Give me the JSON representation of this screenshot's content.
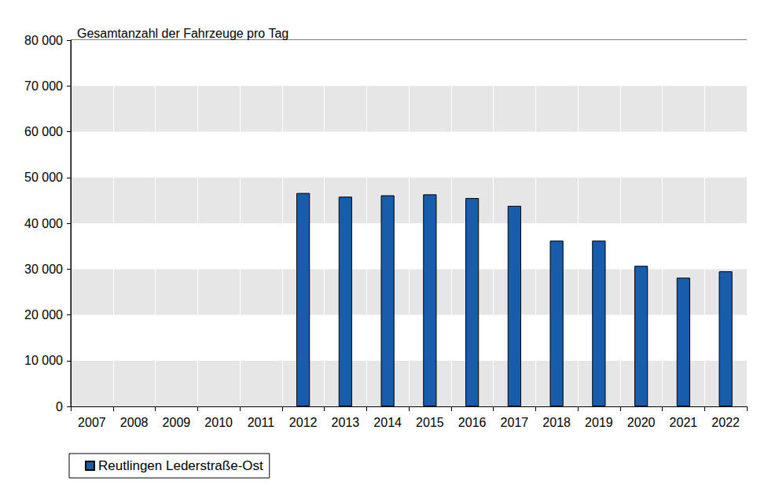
{
  "chart_data": {
    "type": "bar",
    "title": "Gesamtanzahl der Fahrzeuge pro Tag",
    "categories": [
      "2007",
      "2008",
      "2009",
      "2010",
      "2011",
      "2012",
      "2013",
      "2014",
      "2015",
      "2016",
      "2017",
      "2018",
      "2019",
      "2020",
      "2021",
      "2022"
    ],
    "series": [
      {
        "name": "Reutlingen Lederstraße-Ost",
        "color": "#175dab",
        "values": [
          null,
          null,
          null,
          null,
          null,
          46600,
          45800,
          46100,
          46300,
          45500,
          43800,
          36200,
          36200,
          30700,
          28100,
          29500
        ]
      }
    ],
    "ylim": [
      0,
      80000
    ],
    "yticks": [
      0,
      {
        "value": 10000,
        "label": "10 000"
      },
      {
        "value": 20000,
        "label": "20 000"
      },
      {
        "value": 30000,
        "label": "30 000"
      },
      {
        "value": 40000,
        "label": "40 000"
      },
      {
        "value": 50000,
        "label": "50 000"
      },
      {
        "value": 60000,
        "label": "60 000"
      },
      {
        "value": 70000,
        "label": "70 000"
      },
      {
        "value": 80000,
        "label": "80 000"
      }
    ],
    "grid": true,
    "legend": "bottom"
  }
}
